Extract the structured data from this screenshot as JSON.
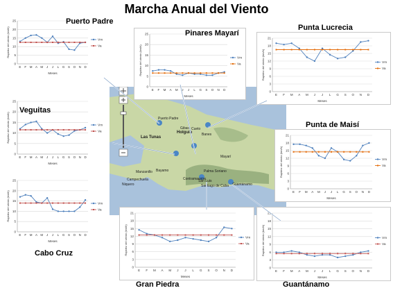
{
  "title": "Marcha Anual del Viento",
  "map": {
    "labels": [
      "Las Tunas",
      "Holguín",
      "Bayamo",
      "Manzanillo",
      "Campechuela",
      "Palma Soriano",
      "Santiago de Cuba",
      "Gibara",
      "Banes",
      "Mayarí",
      "Puerto Padre",
      "Guantánamo",
      "San Luis",
      "Contramaestre",
      "Cueto",
      "Niquero"
    ],
    "colors": {
      "land": "#c9d7a6",
      "sea": "#a9c2dc",
      "mountains": "#8fa877",
      "marker": "#4a86c5"
    }
  },
  "colors": {
    "vm": "#4f81bd",
    "va": "#e46c0a",
    "va_dark": "#c0504d",
    "grid": "#d9d9d9",
    "connector": "#ffffff"
  },
  "chart_data": [
    {
      "id": "puerto-padre",
      "name": "Puerto Padre",
      "type": "line",
      "categories": [
        "E",
        "F",
        "M",
        "A",
        "M",
        "J",
        "J",
        "L",
        "G",
        "S",
        "O",
        "N",
        "D"
      ],
      "ylim": [
        0,
        25
      ],
      "yticks": [
        0,
        5,
        10,
        15,
        20,
        25
      ],
      "ylabel": "Rapidez del viento (km/h)",
      "xlabel": "Meses",
      "series": [
        {
          "name": "Vm",
          "values": [
            13,
            15,
            16.5,
            16.8,
            15,
            12.5,
            16,
            12,
            12.8,
            8.5,
            8,
            12,
            12.5
          ]
        },
        {
          "name": "Va",
          "values": [
            12.5,
            12.5,
            12.5,
            12.5,
            12.5,
            12.5,
            12.5,
            12.5,
            12.5,
            12.5,
            12.5,
            12.5,
            12.5
          ]
        }
      ]
    },
    {
      "id": "pinares-mayari",
      "name": "Pinares Mayarí",
      "type": "line",
      "categories": [
        "E",
        "F",
        "M",
        "A",
        "M",
        "J",
        "J",
        "L",
        "G",
        "S",
        "O",
        "N",
        "D"
      ],
      "ylim": [
        0,
        25
      ],
      "yticks": [
        0,
        5,
        10,
        15,
        20,
        25
      ],
      "ylabel": "Rapidez del viento (km/h)",
      "xlabel": "Meses",
      "series": [
        {
          "name": "Vm",
          "values": [
            7.5,
            8,
            8,
            7.5,
            6,
            5.5,
            6.5,
            6,
            6,
            5.5,
            5.5,
            6.5,
            7
          ]
        },
        {
          "name": "Va",
          "values": [
            6.5,
            6.5,
            6.5,
            6.5,
            6.5,
            6.5,
            6.5,
            6.5,
            6.5,
            6.5,
            6.5,
            6.5,
            6.5
          ]
        }
      ]
    },
    {
      "id": "punta-lucrecia",
      "name": "Punta Lucrecia",
      "type": "line",
      "categories": [
        "E",
        "F",
        "M",
        "A",
        "M",
        "J",
        "J",
        "L",
        "G",
        "S",
        "O",
        "N",
        "D"
      ],
      "ylim": [
        0,
        21
      ],
      "yticks": [
        0,
        3,
        6,
        9,
        12,
        15,
        18,
        21
      ],
      "ylabel": "Rapidez del viento (km/h)",
      "xlabel": "Meses",
      "series": [
        {
          "name": "Vm",
          "values": [
            19,
            18.5,
            19,
            17,
            13.5,
            12,
            17,
            14.5,
            13,
            13.5,
            16,
            19.5,
            20
          ]
        },
        {
          "name": "Va",
          "values": [
            16.5,
            16.5,
            16.5,
            16.5,
            16.5,
            16.5,
            16.5,
            16.5,
            16.5,
            16.5,
            16.5,
            16.5,
            16.5
          ]
        }
      ]
    },
    {
      "id": "veguitas",
      "name": "Veguitas",
      "type": "line",
      "categories": [
        "E",
        "F",
        "M",
        "A",
        "M",
        "J",
        "J",
        "L",
        "G",
        "S",
        "O",
        "N",
        "D"
      ],
      "ylim": [
        0,
        25
      ],
      "yticks": [
        0,
        5,
        10,
        15,
        20,
        25
      ],
      "ylabel": "Rapidez del viento (km/h)",
      "xlabel": "Meses",
      "series": [
        {
          "name": "Vm",
          "values": [
            12,
            14,
            15,
            15.5,
            12,
            10,
            11.5,
            9.5,
            8.5,
            9,
            11,
            11.5,
            12.5
          ]
        },
        {
          "name": "Va",
          "values": [
            11.5,
            11.5,
            11.5,
            11.5,
            11.5,
            11.5,
            11.5,
            11.5,
            11.5,
            11.5,
            11.5,
            11.5,
            11.5
          ]
        }
      ]
    },
    {
      "id": "punta-de-maisi",
      "name": "Punta de Maisí",
      "type": "line",
      "categories": [
        "E",
        "F",
        "M",
        "A",
        "M",
        "J",
        "J",
        "L",
        "G",
        "S",
        "O",
        "N",
        "D"
      ],
      "ylim": [
        0,
        21
      ],
      "yticks": [
        0,
        3,
        6,
        9,
        12,
        15,
        18,
        21
      ],
      "ylabel": "Rapidez del viento (km/h)",
      "xlabel": "Meses",
      "series": [
        {
          "name": "Vm",
          "values": [
            17.5,
            17.5,
            17,
            16,
            13,
            12,
            16,
            14.5,
            11.5,
            11,
            13,
            17,
            18
          ]
        },
        {
          "name": "Va",
          "values": [
            14.5,
            14.5,
            14.5,
            14.5,
            14.5,
            14.5,
            14.5,
            14.5,
            14.5,
            14.5,
            14.5,
            14.5,
            14.5
          ]
        }
      ]
    },
    {
      "id": "cabo-cruz",
      "name": "Cabo Cruz",
      "type": "line",
      "categories": [
        "E",
        "F",
        "M",
        "A",
        "M",
        "J",
        "J",
        "L",
        "G",
        "S",
        "O",
        "N",
        "D"
      ],
      "ylim": [
        0,
        25
      ],
      "yticks": [
        0,
        5,
        10,
        15,
        20,
        25
      ],
      "ylabel": "Rapidez del viento (km/h)",
      "xlabel": "Meses",
      "series": [
        {
          "name": "Vm",
          "values": [
            17,
            18,
            17.5,
            14.5,
            14,
            16.5,
            11,
            10,
            10,
            10,
            10,
            12,
            15.5
          ]
        },
        {
          "name": "Va",
          "values": [
            14,
            14,
            14,
            14,
            14,
            14,
            14,
            14,
            14,
            14,
            14,
            14,
            14
          ]
        }
      ]
    },
    {
      "id": "gran-piedra",
      "name": "Gran Piedra",
      "type": "line",
      "categories": [
        "E",
        "F",
        "M",
        "A",
        "M",
        "J",
        "J",
        "L",
        "G",
        "S",
        "O",
        "N",
        "D"
      ],
      "ylim": [
        0,
        21
      ],
      "yticks": [
        0,
        3,
        6,
        9,
        12,
        15,
        18,
        21
      ],
      "ylabel": "Rapidez del viento (km/h)",
      "xlabel": "Meses",
      "series": [
        {
          "name": "Vm",
          "values": [
            14.5,
            13,
            12.5,
            11.5,
            10,
            10.5,
            11.5,
            11,
            10.5,
            10,
            11.5,
            15.5,
            15
          ]
        },
        {
          "name": "Va",
          "values": [
            12.5,
            12.5,
            12.5,
            12.5,
            12.5,
            12.5,
            12.5,
            12.5,
            12.5,
            12.5,
            12.5,
            12.5,
            12.5
          ]
        }
      ]
    },
    {
      "id": "guantanamo",
      "name": "Guantánamo",
      "type": "line",
      "categories": [
        "E",
        "F",
        "M",
        "A",
        "M",
        "J",
        "J",
        "L",
        "G",
        "S",
        "O",
        "N",
        "D"
      ],
      "ylim": [
        0,
        21
      ],
      "yticks": [
        0,
        3,
        6,
        9,
        12,
        15,
        18,
        21
      ],
      "ylabel": "Rapidez del viento (km/h)",
      "xlabel": "Meses",
      "series": [
        {
          "name": "Vm",
          "values": [
            6,
            6,
            6.5,
            6,
            5,
            4.5,
            5,
            5,
            4,
            4.5,
            5,
            6,
            6.5
          ]
        },
        {
          "name": "Va",
          "values": [
            5.5,
            5.5,
            5.5,
            5.5,
            5.5,
            5.5,
            5.5,
            5.5,
            5.5,
            5.5,
            5.5,
            5.5,
            5.5
          ]
        }
      ]
    }
  ]
}
